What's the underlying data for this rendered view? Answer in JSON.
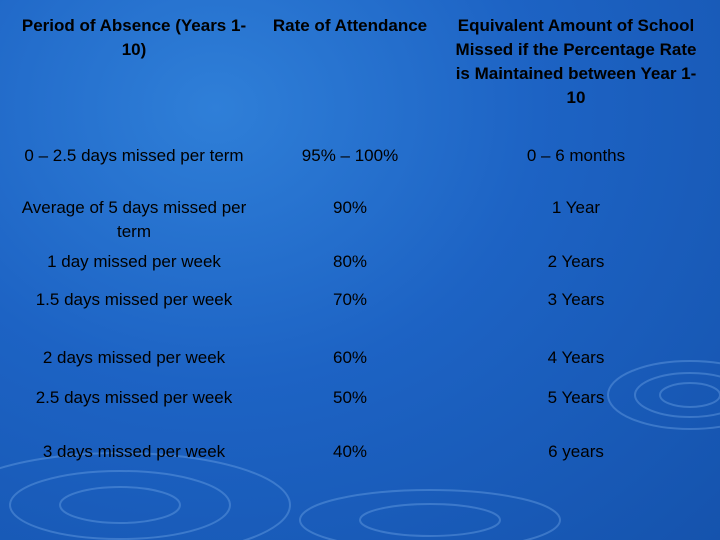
{
  "table": {
    "headers": [
      "Period of Absence (Years 1-10)",
      "Rate of Attendance",
      "Equivalent Amount of School Missed if the Percentage Rate is Maintained between Year 1-10"
    ],
    "rows": [
      [
        "0 – 2.5 days missed per term",
        "95% – 100%",
        "0 – 6 months"
      ],
      [
        "Average of 5 days missed per term",
        "90%",
        "1 Year"
      ],
      [
        "1 day missed per week",
        "80%",
        "2 Years"
      ],
      [
        "1.5 days missed per week",
        "70%",
        "3 Years"
      ],
      [
        "2 days missed per week",
        "60%",
        "4 Years"
      ],
      [
        "2.5 days missed per week",
        "50%",
        "5 Years"
      ],
      [
        "3 days missed per week",
        "40%",
        "6 years"
      ]
    ]
  }
}
